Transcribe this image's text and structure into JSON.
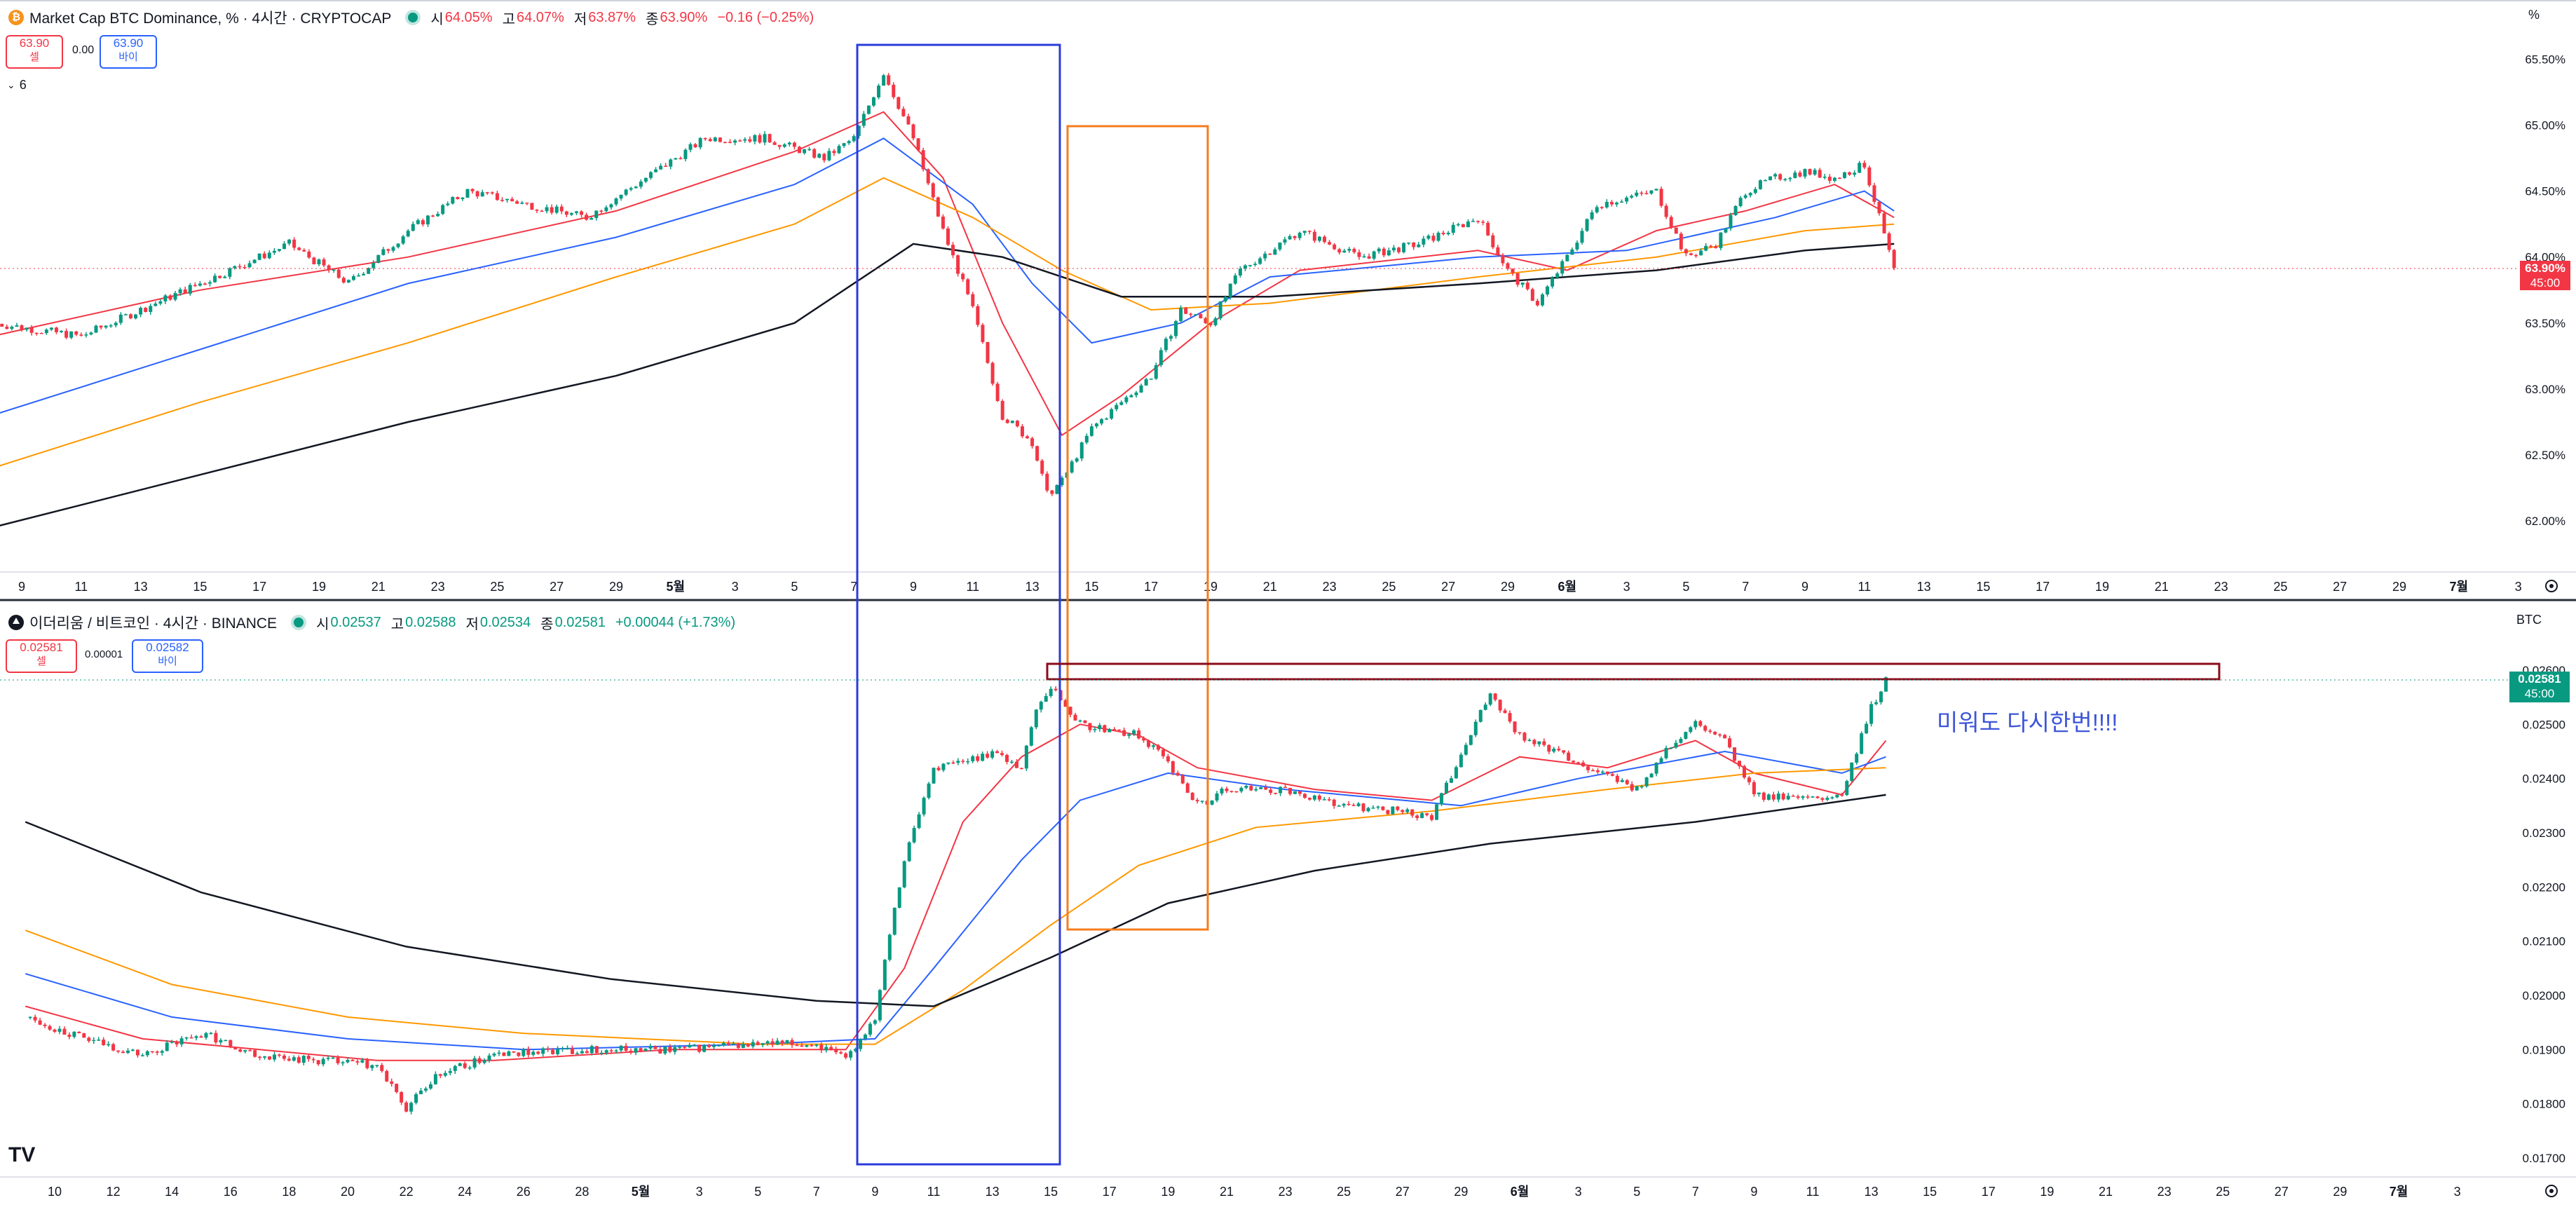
{
  "colors": {
    "up": "#089981",
    "down": "#f23645",
    "ema_red": "#f23645",
    "ema_blue": "#2962ff",
    "ema_orange": "#ff9800",
    "ema_black": "#131722",
    "box_blue": "#2b3bdb",
    "box_orange": "#f57c1f",
    "box_darkred": "#8b0a1a",
    "note": "#3d55d8"
  },
  "top_panel": {
    "symbol_icon": "bitcoin-icon",
    "title": "Market Cap BTC Dominance, % · 4시간 · CRYPTOCAP",
    "ohlc": [
      {
        "label": "시",
        "value": "64.05%"
      },
      {
        "label": "고",
        "value": "64.07%"
      },
      {
        "label": "저",
        "value": "63.87%"
      },
      {
        "label": "종",
        "value": "63.90%"
      }
    ],
    "change": "−0.16 (−0.25%)",
    "sell_price": "63.90",
    "sell_label": "셀",
    "spread": "0.00",
    "buy_price": "63.90",
    "buy_label": "바이",
    "collapse_toggle": "6",
    "price_badge": "63.90%",
    "countdown": "45:00",
    "axis_unit": "%",
    "y_ticks": [
      "65.50%",
      "65.00%",
      "64.50%",
      "64.00%",
      "63.50%",
      "63.00%",
      "62.50%",
      "62.00%"
    ],
    "x_ticks": [
      "9",
      "11",
      "13",
      "15",
      "17",
      "19",
      "21",
      "23",
      "25",
      "27",
      "29",
      "5월",
      "3",
      "5",
      "7",
      "9",
      "11",
      "13",
      "15",
      "17",
      "19",
      "21",
      "23",
      "25",
      "27",
      "29",
      "6월",
      "3",
      "5",
      "7",
      "9",
      "11",
      "13",
      "15",
      "17",
      "19",
      "21",
      "23",
      "25",
      "27",
      "29",
      "7월",
      "3"
    ]
  },
  "bottom_panel": {
    "symbol_icon": "ethereum-icon",
    "title": "이더리움 / 비트코인 · 4시간 · BINANCE",
    "ohlc": [
      {
        "label": "시",
        "value": "0.02537"
      },
      {
        "label": "고",
        "value": "0.02588"
      },
      {
        "label": "저",
        "value": "0.02534"
      },
      {
        "label": "종",
        "value": "0.02581"
      }
    ],
    "change": "+0.00044 (+1.73%)",
    "sell_price": "0.02581",
    "sell_label": "셀",
    "spread": "0.00001",
    "buy_price": "0.02582",
    "buy_label": "바이",
    "price_badge": "0.02581",
    "countdown": "45:00",
    "axis_unit": "BTC",
    "y_ticks": [
      "0.02600",
      "0.02500",
      "0.02400",
      "0.02300",
      "0.02200",
      "0.02100",
      "0.02000",
      "0.01900",
      "0.01800",
      "0.01700"
    ],
    "x_ticks": [
      "10",
      "12",
      "14",
      "16",
      "18",
      "20",
      "22",
      "24",
      "26",
      "28",
      "5월",
      "3",
      "5",
      "7",
      "9",
      "11",
      "13",
      "15",
      "17",
      "19",
      "21",
      "23",
      "25",
      "27",
      "29",
      "6월",
      "3",
      "5",
      "7",
      "9",
      "11",
      "13",
      "15",
      "17",
      "19",
      "21",
      "23",
      "25",
      "27",
      "29",
      "7월",
      "3"
    ],
    "annotation": "미워도 다시한번!!!!"
  },
  "logo": "TV",
  "chart_data": [
    {
      "type": "candlestick",
      "title": "Market Cap BTC Dominance, % · 4시간 · CRYPTOCAP",
      "ylabel": "%",
      "ylim": [
        61.8,
        65.7
      ],
      "x_range": [
        "Apr 8",
        "Jul 3"
      ],
      "last_data_x": "Jun 11",
      "close_path": [
        [
          "Apr 8",
          63.5
        ],
        [
          "Apr 11",
          63.4
        ],
        [
          "Apr 13",
          63.6
        ],
        [
          "Apr 16",
          63.9
        ],
        [
          "Apr 18",
          64.1
        ],
        [
          "Apr 20",
          63.8
        ],
        [
          "Apr 22",
          64.2
        ],
        [
          "Apr 24",
          64.5
        ],
        [
          "Apr 26",
          64.4
        ],
        [
          "Apr 28",
          64.3
        ],
        [
          "Apr 30",
          64.6
        ],
        [
          "May 2",
          64.9
        ],
        [
          "May 4",
          64.9
        ],
        [
          "May 6",
          64.75
        ],
        [
          "May 7",
          64.9
        ],
        [
          "May 8",
          65.4
        ],
        [
          "May 9",
          64.9
        ],
        [
          "May 10",
          64.2
        ],
        [
          "May 11",
          63.6
        ],
        [
          "May 12",
          62.8
        ],
        [
          "May 13",
          62.6
        ],
        [
          "May 13.5",
          62.2
        ],
        [
          "May 14",
          62.3
        ],
        [
          "May 15",
          62.7
        ],
        [
          "May 17",
          63.1
        ],
        [
          "May 18",
          63.6
        ],
        [
          "May 19",
          63.5
        ],
        [
          "May 20",
          63.9
        ],
        [
          "May 22",
          64.2
        ],
        [
          "May 24",
          64.0
        ],
        [
          "May 26",
          64.1
        ],
        [
          "May 28",
          64.3
        ],
        [
          "May 29",
          63.9
        ],
        [
          "May 30",
          63.65
        ],
        [
          "May 31",
          64.0
        ],
        [
          "Jun 1",
          64.4
        ],
        [
          "Jun 3",
          64.5
        ],
        [
          "Jun 4",
          64.0
        ],
        [
          "Jun 5",
          64.1
        ],
        [
          "Jun 6",
          64.5
        ],
        [
          "Jun 7",
          64.6
        ],
        [
          "Jun 8",
          64.65
        ],
        [
          "Jun 9",
          64.6
        ],
        [
          "Jun 10",
          64.7
        ],
        [
          "Jun 11",
          63.9
        ]
      ],
      "series": [
        {
          "name": "EMA",
          "color": "#f23645",
          "values": [
            [
              "Apr 8",
              63.4
            ],
            [
              "Apr 15",
              63.75
            ],
            [
              "Apr 22",
              64.0
            ],
            [
              "Apr 29",
              64.35
            ],
            [
              "May 5",
              64.8
            ],
            [
              "May 8",
              65.1
            ],
            [
              "May 10",
              64.6
            ],
            [
              "May 12",
              63.5
            ],
            [
              "May 14",
              62.65
            ],
            [
              "May 16",
              62.95
            ],
            [
              "May 19",
              63.5
            ],
            [
              "May 22",
              63.9
            ],
            [
              "May 28",
              64.05
            ],
            [
              "May 31",
              63.9
            ],
            [
              "Jun 3",
              64.2
            ],
            [
              "Jun 6",
              64.35
            ],
            [
              "Jun 9",
              64.55
            ],
            [
              "Jun 11",
              64.3
            ]
          ]
        },
        {
          "name": "EMA",
          "color": "#2962ff",
          "values": [
            [
              "Apr 8",
              62.8
            ],
            [
              "Apr 15",
              63.3
            ],
            [
              "Apr 22",
              63.8
            ],
            [
              "Apr 29",
              64.15
            ],
            [
              "May 5",
              64.55
            ],
            [
              "May 8",
              64.9
            ],
            [
              "May 11",
              64.4
            ],
            [
              "May 13",
              63.8
            ],
            [
              "May 15",
              63.35
            ],
            [
              "May 18",
              63.5
            ],
            [
              "May 21",
              63.85
            ],
            [
              "May 28",
              64.0
            ],
            [
              "Jun 2",
              64.05
            ],
            [
              "Jun 7",
              64.3
            ],
            [
              "Jun 10",
              64.5
            ],
            [
              "Jun 11",
              64.35
            ]
          ]
        },
        {
          "name": "EMA",
          "color": "#ff9800",
          "values": [
            [
              "Apr 8",
              62.4
            ],
            [
              "Apr 15",
              62.9
            ],
            [
              "Apr 22",
              63.35
            ],
            [
              "Apr 29",
              63.85
            ],
            [
              "May 5",
              64.25
            ],
            [
              "May 8",
              64.6
            ],
            [
              "May 11",
              64.3
            ],
            [
              "May 14",
              63.9
            ],
            [
              "May 17",
              63.6
            ],
            [
              "May 21",
              63.65
            ],
            [
              "May 28",
              63.85
            ],
            [
              "Jun 3",
              64.0
            ],
            [
              "Jun 8",
              64.2
            ],
            [
              "Jun 11",
              64.25
            ]
          ]
        },
        {
          "name": "EMA",
          "color": "#131722",
          "values": [
            [
              "Apr 8",
              61.95
            ],
            [
              "Apr 15",
              62.35
            ],
            [
              "Apr 22",
              62.75
            ],
            [
              "Apr 29",
              63.1
            ],
            [
              "May 5",
              63.5
            ],
            [
              "May 9",
              64.1
            ],
            [
              "May 12",
              64.0
            ],
            [
              "May 16",
              63.7
            ],
            [
              "May 21",
              63.7
            ],
            [
              "May 28",
              63.8
            ],
            [
              "Jun 3",
              63.9
            ],
            [
              "Jun 8",
              64.05
            ],
            [
              "Jun 11",
              64.1
            ]
          ]
        }
      ]
    },
    {
      "type": "candlestick",
      "title": "이더리움 / 비트코인 · 4시간 · BINANCE",
      "ylabel": "BTC",
      "ylim": [
        0.0169,
        0.0266
      ],
      "x_range": [
        "Apr 9",
        "Jul 3"
      ],
      "last_data_x": "Jun 11.5",
      "close_path": [
        [
          "Apr 9",
          0.0196
        ],
        [
          "Apr 11",
          0.0192
        ],
        [
          "Apr 13",
          0.0189
        ],
        [
          "Apr 15",
          0.0193
        ],
        [
          "Apr 17",
          0.0189
        ],
        [
          "Apr 19",
          0.0188
        ],
        [
          "Apr 21",
          0.0187
        ],
        [
          "Apr 22",
          0.0179
        ],
        [
          "Apr 23",
          0.0185
        ],
        [
          "Apr 25",
          0.0189
        ],
        [
          "Apr 28",
          0.019
        ],
        [
          "May 1",
          0.019
        ],
        [
          "May 4",
          0.0191
        ],
        [
          "May 6",
          0.0191
        ],
        [
          "May 7",
          0.0188
        ],
        [
          "May 8",
          0.0196
        ],
        [
          "May 8.5",
          0.0212
        ],
        [
          "May 9",
          0.0225
        ],
        [
          "May 10",
          0.0242
        ],
        [
          "May 11",
          0.0243
        ],
        [
          "May 12",
          0.0245
        ],
        [
          "May 13",
          0.0242
        ],
        [
          "May 13.5",
          0.0253
        ],
        [
          "May 14",
          0.0257
        ],
        [
          "May 15",
          0.025
        ],
        [
          "May 16",
          0.0249
        ],
        [
          "May 17",
          0.0248
        ],
        [
          "May 18",
          0.0243
        ],
        [
          "May 19",
          0.0235
        ],
        [
          "May 20",
          0.0238
        ],
        [
          "May 22",
          0.0238
        ],
        [
          "May 24",
          0.0235
        ],
        [
          "May 26",
          0.0234
        ],
        [
          "May 27",
          0.0233
        ],
        [
          "May 28",
          0.0244
        ],
        [
          "May 29",
          0.0256
        ],
        [
          "May 30",
          0.0248
        ],
        [
          "Jun 1",
          0.0243
        ],
        [
          "Jun 3",
          0.0238
        ],
        [
          "Jun 4",
          0.0245
        ],
        [
          "Jun 5",
          0.025
        ],
        [
          "Jun 6",
          0.0247
        ],
        [
          "Jun 7",
          0.0237
        ],
        [
          "Jun 9",
          0.0236
        ],
        [
          "Jun 10",
          0.0237
        ],
        [
          "Jun 11",
          0.0253
        ],
        [
          "Jun 11.5",
          0.0258
        ]
      ],
      "series": [
        {
          "name": "EMA",
          "color": "#f23645",
          "values": [
            [
              "Apr 9",
              0.0198
            ],
            [
              "Apr 13",
              0.0192
            ],
            [
              "Apr 17",
              0.019
            ],
            [
              "Apr 21",
              0.0188
            ],
            [
              "Apr 25",
              0.0188
            ],
            [
              "May 1",
              0.019
            ],
            [
              "May 7",
              0.019
            ],
            [
              "May 9",
              0.0205
            ],
            [
              "May 11",
              0.0232
            ],
            [
              "May 13",
              0.0244
            ],
            [
              "May 15",
              0.025
            ],
            [
              "May 17",
              0.0248
            ],
            [
              "May 19",
              0.0242
            ],
            [
              "May 23",
              0.0238
            ],
            [
              "May 27",
              0.0236
            ],
            [
              "May 30",
              0.0244
            ],
            [
              "Jun 2",
              0.0242
            ],
            [
              "Jun 5",
              0.0247
            ],
            [
              "Jun 7",
              0.0241
            ],
            [
              "Jun 10",
              0.0237
            ],
            [
              "Jun 11.5",
              0.0247
            ]
          ]
        },
        {
          "name": "EMA",
          "color": "#2962ff",
          "values": [
            [
              "Apr 9",
              0.0204
            ],
            [
              "Apr 14",
              0.0196
            ],
            [
              "Apr 20",
              0.0192
            ],
            [
              "Apr 26",
              0.019
            ],
            [
              "May 4",
              0.0191
            ],
            [
              "May 8",
              0.0192
            ],
            [
              "May 10",
              0.0205
            ],
            [
              "May 13",
              0.0225
            ],
            [
              "May 15",
              0.0236
            ],
            [
              "May 18",
              0.0241
            ],
            [
              "May 22",
              0.0238
            ],
            [
              "May 28",
              0.0235
            ],
            [
              "Jun 1",
              0.024
            ],
            [
              "Jun 6",
              0.0245
            ],
            [
              "Jun 10",
              0.0241
            ],
            [
              "Jun 11.5",
              0.0244
            ]
          ]
        },
        {
          "name": "EMA",
          "color": "#ff9800",
          "values": [
            [
              "Apr 9",
              0.0212
            ],
            [
              "Apr 14",
              0.0202
            ],
            [
              "Apr 20",
              0.0196
            ],
            [
              "Apr 26",
              0.0193
            ],
            [
              "May 4",
              0.0191
            ],
            [
              "May 8",
              0.0191
            ],
            [
              "May 11",
              0.0201
            ],
            [
              "May 14",
              0.0213
            ],
            [
              "May 17",
              0.0224
            ],
            [
              "May 21",
              0.0231
            ],
            [
              "May 27",
              0.0234
            ],
            [
              "Jun 2",
              0.0238
            ],
            [
              "Jun 7",
              0.0241
            ],
            [
              "Jun 11.5",
              0.0242
            ]
          ]
        },
        {
          "name": "EMA",
          "color": "#131722",
          "values": [
            [
              "Apr 9",
              0.0232
            ],
            [
              "Apr 15",
              0.0219
            ],
            [
              "Apr 22",
              0.0209
            ],
            [
              "Apr 29",
              0.0203
            ],
            [
              "May 6",
              0.0199
            ],
            [
              "May 10",
              0.0198
            ],
            [
              "May 14",
              0.0207
            ],
            [
              "May 18",
              0.0217
            ],
            [
              "May 23",
              0.0223
            ],
            [
              "May 29",
              0.0228
            ],
            [
              "Jun 5",
              0.0232
            ],
            [
              "Jun 11.5",
              0.0237
            ]
          ]
        }
      ]
    }
  ]
}
